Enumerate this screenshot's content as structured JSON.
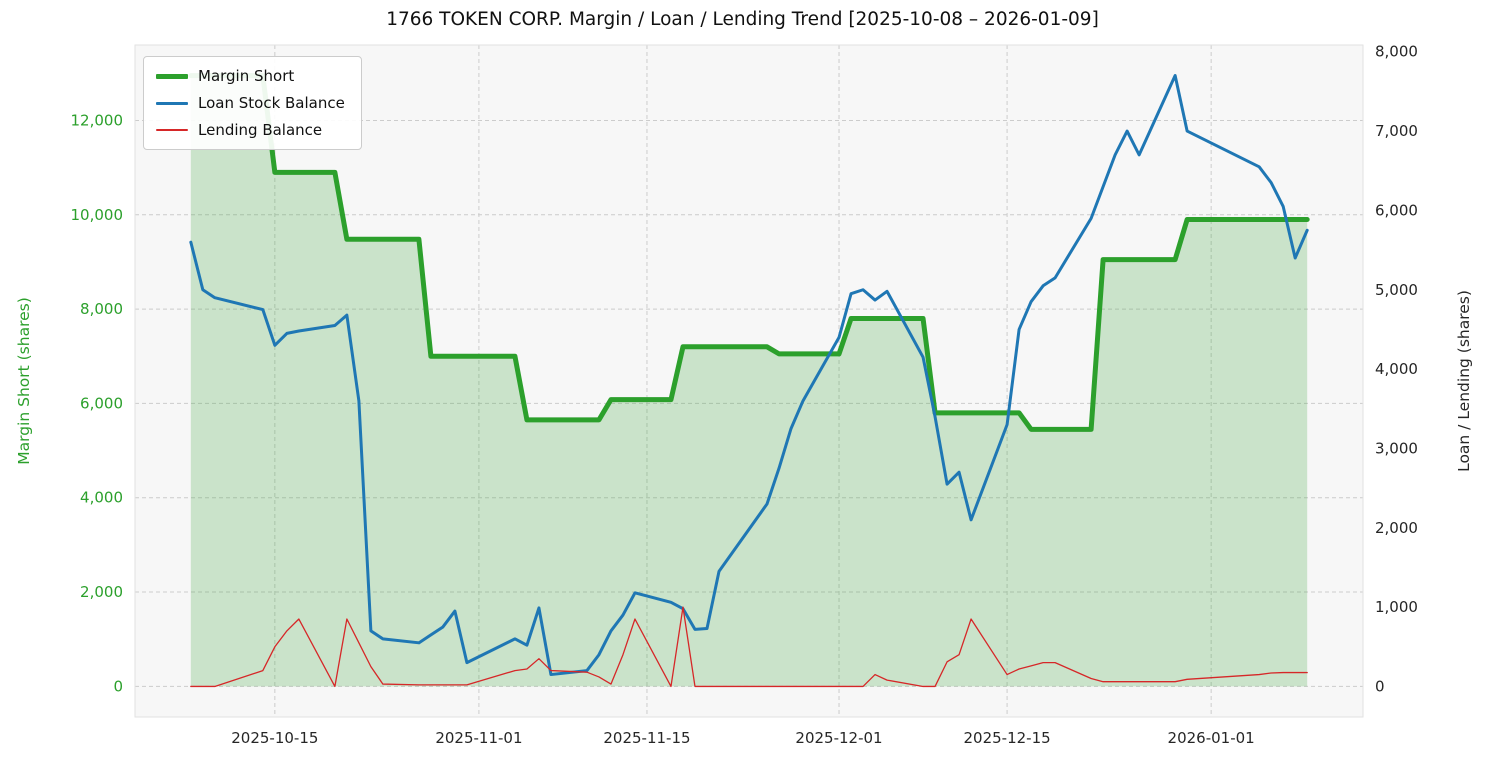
{
  "title": "1766 TOKEN CORP. Margin / Loan / Lending Trend [2025-10-08 – 2026-01-09]",
  "colors": {
    "margin_green": "#2ca02c",
    "loan_blue": "#1f77b4",
    "lending_red": "#d62728",
    "margin_fill": "rgba(44,160,44,0.22)",
    "plot_bg": "#f7f7f7",
    "grid": "#cccccc",
    "frame": "#e2e2e2",
    "tick_text": "#262626"
  },
  "axes": {
    "left": {
      "label": "Margin Short (shares)",
      "color": "#2ca02c",
      "ticks": [
        0,
        2000,
        4000,
        6000,
        8000,
        10000,
        12000
      ],
      "lim": [
        -650,
        13600
      ]
    },
    "right": {
      "label": "Loan / Lending (shares)",
      "color": "#262626",
      "ticks": [
        0,
        1000,
        2000,
        3000,
        4000,
        5000,
        6000,
        7000,
        8000
      ],
      "lim": [
        -385,
        8085
      ]
    },
    "x": {
      "ticks": [
        "2025-10-15",
        "2025-11-01",
        "2025-11-15",
        "2025-12-01",
        "2025-12-15",
        "2026-01-01"
      ],
      "lim_days": [
        -4.65,
        97.65
      ]
    }
  },
  "legend": {
    "items": [
      {
        "label": "Margin Short"
      },
      {
        "label": "Loan Stock Balance"
      },
      {
        "label": "Lending Balance"
      }
    ]
  },
  "chart_data": {
    "type": "line",
    "title": "1766 TOKEN CORP. Margin / Loan / Lending Trend [2025-10-08 – 2026-01-09]",
    "x_axis": "date",
    "grid": true,
    "legend_position": "upper-left",
    "x": [
      "2025-10-08",
      "2025-10-09",
      "2025-10-10",
      "2025-10-14",
      "2025-10-15",
      "2025-10-16",
      "2025-10-17",
      "2025-10-20",
      "2025-10-21",
      "2025-10-22",
      "2025-10-23",
      "2025-10-24",
      "2025-10-27",
      "2025-10-28",
      "2025-10-29",
      "2025-10-30",
      "2025-10-31",
      "2025-11-04",
      "2025-11-05",
      "2025-11-06",
      "2025-11-07",
      "2025-11-10",
      "2025-11-11",
      "2025-11-12",
      "2025-11-13",
      "2025-11-14",
      "2025-11-17",
      "2025-11-18",
      "2025-11-19",
      "2025-11-20",
      "2025-11-21",
      "2025-11-25",
      "2025-11-26",
      "2025-11-27",
      "2025-11-28",
      "2025-12-01",
      "2025-12-02",
      "2025-12-03",
      "2025-12-04",
      "2025-12-05",
      "2025-12-08",
      "2025-12-09",
      "2025-12-10",
      "2025-12-11",
      "2025-12-12",
      "2025-12-15",
      "2025-12-16",
      "2025-12-17",
      "2025-12-18",
      "2025-12-19",
      "2025-12-22",
      "2025-12-23",
      "2025-12-24",
      "2025-12-25",
      "2025-12-26",
      "2025-12-29",
      "2025-12-30",
      "2026-01-05",
      "2026-01-06",
      "2026-01-07",
      "2026-01-08",
      "2026-01-09"
    ],
    "series": [
      {
        "name": "Margin Short",
        "axis": "left",
        "color": "#2ca02c",
        "width": 5,
        "fill": true,
        "fill_color": "rgba(44,160,44,0.22)",
        "values": [
          12950,
          12950,
          12950,
          12950,
          10900,
          10900,
          10900,
          10900,
          9480,
          9480,
          9480,
          9480,
          9480,
          7000,
          7000,
          7000,
          7000,
          7000,
          5650,
          5650,
          5650,
          5650,
          5650,
          6080,
          6080,
          6080,
          6080,
          7200,
          7200,
          7200,
          7200,
          7200,
          7050,
          7050,
          7050,
          7050,
          7800,
          7800,
          7800,
          7800,
          7800,
          5800,
          5800,
          5800,
          5800,
          5800,
          5800,
          5450,
          5450,
          5450,
          5450,
          9050,
          9050,
          9050,
          9050,
          9050,
          9900,
          9900,
          9900,
          9900,
          9900,
          9900
        ]
      },
      {
        "name": "Loan Stock Balance",
        "axis": "right",
        "color": "#1f77b4",
        "width": 3,
        "fill": false,
        "values": [
          5600,
          5000,
          4900,
          4750,
          4300,
          4450,
          4480,
          4550,
          4680,
          3600,
          700,
          600,
          550,
          650,
          750,
          950,
          300,
          600,
          520,
          990,
          150,
          200,
          400,
          700,
          900,
          1180,
          1060,
          980,
          720,
          730,
          1450,
          2300,
          2750,
          3250,
          3600,
          4400,
          4950,
          5000,
          4870,
          4980,
          4150,
          3400,
          2550,
          2700,
          2100,
          3300,
          4500,
          4850,
          5050,
          5150,
          5900,
          6300,
          6700,
          7000,
          6700,
          7700,
          7000,
          6550,
          6350,
          6050,
          5400,
          5750
        ]
      },
      {
        "name": "Lending Balance",
        "axis": "right",
        "color": "#d62728",
        "width": 1.3,
        "fill": false,
        "values": [
          0,
          0,
          0,
          200,
          500,
          700,
          850,
          0,
          850,
          550,
          250,
          30,
          20,
          20,
          20,
          20,
          20,
          200,
          220,
          350,
          200,
          180,
          120,
          30,
          400,
          850,
          0,
          1000,
          0,
          0,
          0,
          0,
          0,
          0,
          0,
          0,
          0,
          0,
          150,
          80,
          0,
          0,
          310,
          400,
          850,
          150,
          220,
          260,
          300,
          300,
          100,
          60,
          60,
          60,
          60,
          60,
          90,
          150,
          170,
          175,
          175,
          175
        ]
      }
    ]
  }
}
